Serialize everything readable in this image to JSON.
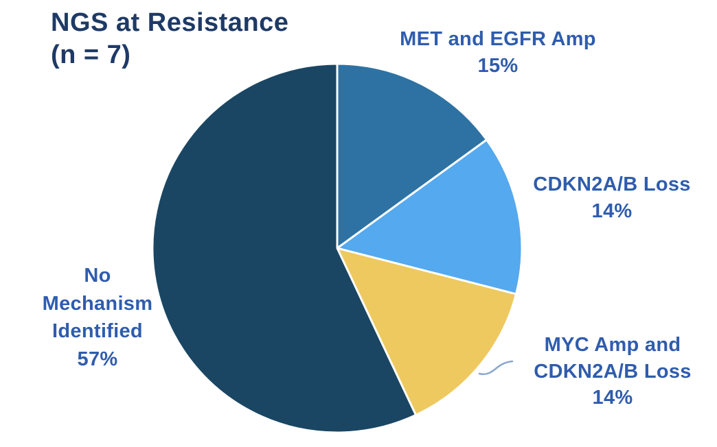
{
  "header": {
    "title_line1": "NGS at Resistance",
    "title_line2": "(n = 7)"
  },
  "chart_data": {
    "type": "pie",
    "title": "NGS at Resistance (n = 7)",
    "n": 7,
    "slices": [
      {
        "label": "MET and EGFR Amp",
        "value": 15,
        "pct_label": "15%",
        "color": "#2e72a3"
      },
      {
        "label": "CDKN2A/B Loss",
        "value": 14,
        "pct_label": "14%",
        "color": "#54a9ef"
      },
      {
        "label": "MYC Amp and CDKN2A/B Loss",
        "value": 14,
        "pct_label": "14%",
        "color": "#edc960"
      },
      {
        "label": "No Mechanism Identified",
        "value": 57,
        "pct_label": "57%",
        "color": "#1a4663"
      }
    ],
    "start_angle_deg": -90,
    "direction": "clockwise",
    "separator_color": "#ffffff",
    "label_color": "#2f5cad",
    "title_color": "#1e3a66",
    "leader_line_color": "#8ba7cf",
    "background": "#ffffff",
    "legend_position": "callouts",
    "grid": false
  },
  "callouts": {
    "met_egfr": [
      "MET and EGFR Amp",
      "15%"
    ],
    "cdkn2ab": [
      "CDKN2A/B Loss",
      "14%"
    ],
    "myc_cdkn2ab": [
      "MYC Amp and",
      "CDKN2A/B Loss",
      "14%"
    ],
    "no_mechanism": [
      "No",
      "Mechanism",
      "Identified",
      "57%"
    ]
  }
}
